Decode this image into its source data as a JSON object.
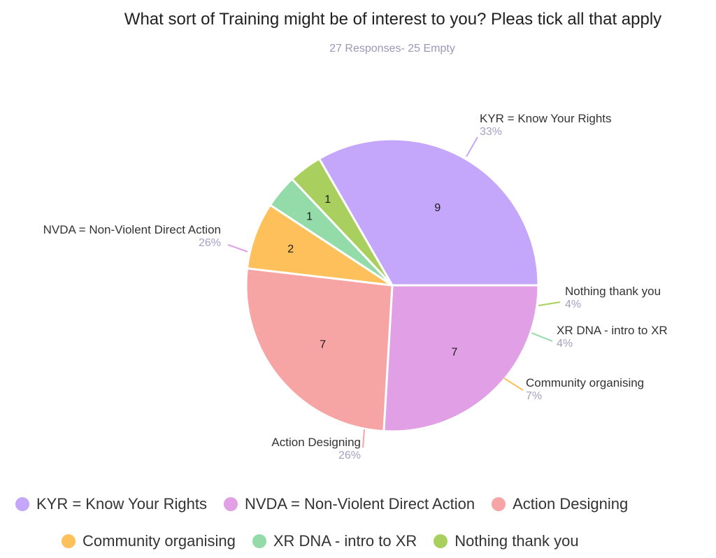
{
  "chart_data": {
    "type": "pie",
    "title": "What sort of Training might be of interest to you? Pleas tick all that apply",
    "subtitle": "27 Responses- 25 Empty",
    "slices": [
      {
        "label": "KYR = Know Your Rights",
        "value": 9,
        "percent": "33%",
        "color": "#c4a6fb"
      },
      {
        "label": "NVDA = Non-Violent Direct Action",
        "value": 7,
        "percent": "26%",
        "color": "#e19fe6"
      },
      {
        "label": "Action Designing",
        "value": 7,
        "percent": "26%",
        "color": "#f7a4a4"
      },
      {
        "label": "Community organising",
        "value": 2,
        "percent": "7%",
        "color": "#fdc05a"
      },
      {
        "label": "XR DNA - intro to XR",
        "value": 1,
        "percent": "4%",
        "color": "#93dca9"
      },
      {
        "label": "Nothing thank you",
        "value": 1,
        "percent": "4%",
        "color": "#a9d05f"
      }
    ],
    "legend": {
      "position": "bottom",
      "rows": [
        [
          "KYR = Know Your Rights",
          "NVDA = Non-Violent Direct Action",
          "Action Designing"
        ],
        [
          "Community organising",
          "XR DNA - intro to XR",
          "Nothing thank you"
        ]
      ]
    }
  }
}
